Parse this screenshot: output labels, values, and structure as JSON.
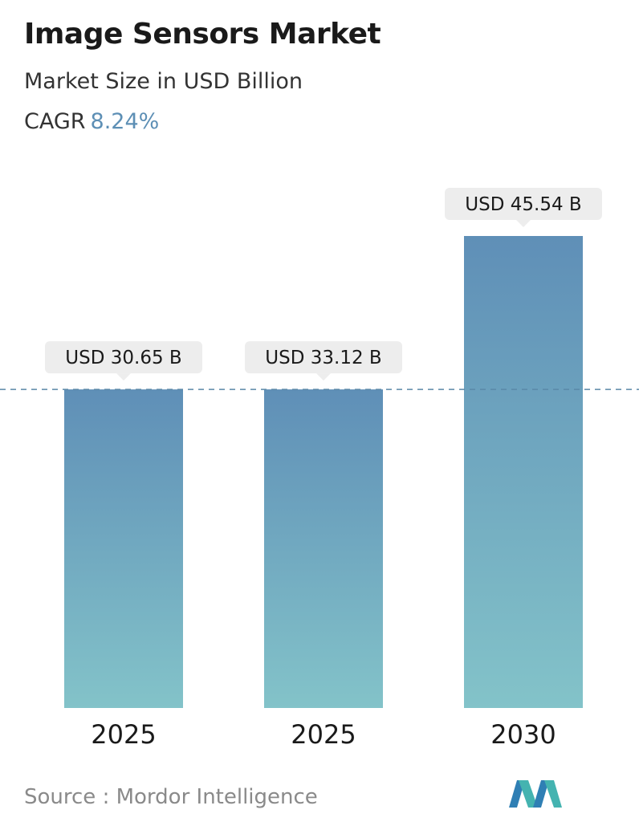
{
  "header": {
    "title": "Image Sensors Market",
    "subtitle": "Market Size in USD Billion",
    "cagr_label": "CAGR",
    "cagr_value": "8.24%"
  },
  "footer": {
    "source": "Source :  Mordor Intelligence"
  },
  "colors": {
    "bar_top": "#5f8fb7",
    "bar_bottom": "#83c3c9",
    "label_bg": "#ededed",
    "dashed_line": "#5a88a8",
    "accent": "#5d8fb5"
  },
  "chart_data": {
    "type": "bar",
    "categories": [
      "2025",
      "2025",
      "2030"
    ],
    "values": [
      30.65,
      33.12,
      45.54
    ],
    "data_labels": [
      "USD 30.65 B",
      "USD 33.12 B",
      "USD 45.54 B"
    ],
    "reference_line": "dashed horizontal line at the top of the first bars",
    "grid": false
  }
}
